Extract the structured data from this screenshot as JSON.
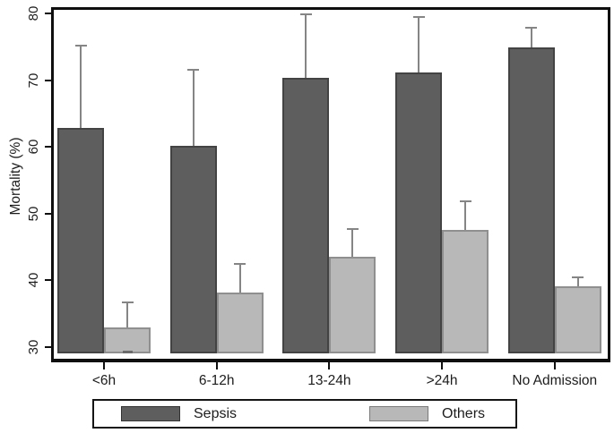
{
  "chart_data": {
    "type": "bar",
    "title": "",
    "xlabel": "",
    "ylabel": "Mortality (%)",
    "categories": [
      "<6h",
      "6-12h",
      "13-24h",
      ">24h",
      "No Admission"
    ],
    "series": [
      {
        "name": "Sepsis",
        "color": "#5e5e5e",
        "border_color": "#434343",
        "values": [
          62.8,
          60.2,
          70.3,
          71.2,
          74.9
        ],
        "error_top": [
          75.2,
          71.5,
          79.9,
          79.5,
          77.9
        ]
      },
      {
        "name": "Others",
        "color": "#b8b8b8",
        "border_color": "#8f8f8f",
        "values": [
          33.0,
          38.2,
          43.6,
          47.6,
          39.1
        ],
        "error_top": [
          36.7,
          42.4,
          47.7,
          51.8,
          40.5
        ],
        "error_bottom": [
          29.3,
          null,
          null,
          null,
          null
        ]
      }
    ],
    "y_ticks": [
      "30",
      "40",
      "50",
      "60",
      "70",
      "80"
    ],
    "ylim": [
      29.05,
      81
    ],
    "baseline": 29.05,
    "grid": false,
    "legend_position": "bottom",
    "error_bar_color": "#858585",
    "error_bottom_cap_color": "#6a6a6a",
    "axis_color": "#0f0f0f"
  }
}
